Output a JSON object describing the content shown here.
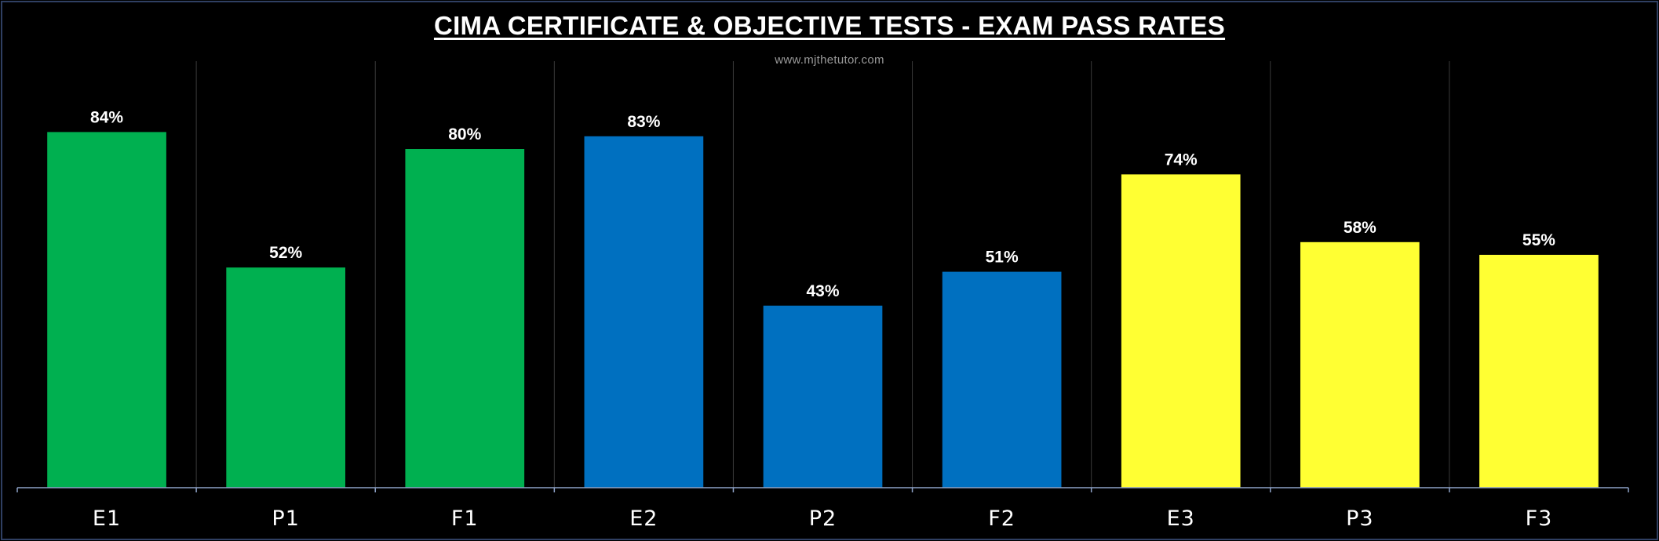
{
  "chart_data": {
    "type": "bar",
    "title": "CIMA CERTIFICATE & OBJECTIVE TESTS - EXAM PASS RATES",
    "watermark": "www.mjthetutor.com",
    "categories": [
      "E1",
      "P1",
      "F1",
      "E2",
      "P2",
      "F2",
      "E3",
      "P3",
      "F3"
    ],
    "values": [
      84,
      52,
      80,
      83,
      43,
      51,
      74,
      58,
      55
    ],
    "value_labels": [
      "84%",
      "52%",
      "80%",
      "83%",
      "43%",
      "51%",
      "74%",
      "58%",
      "55%"
    ],
    "bar_colors": [
      "#00b050",
      "#00b050",
      "#00b050",
      "#0070c0",
      "#0070c0",
      "#0070c0",
      "#ffff33",
      "#ffff33",
      "#ffff33"
    ],
    "ylim": [
      0,
      100
    ],
    "grid": "vertical",
    "legend": "none",
    "background": "#000000",
    "text_color": "#ffffff"
  }
}
